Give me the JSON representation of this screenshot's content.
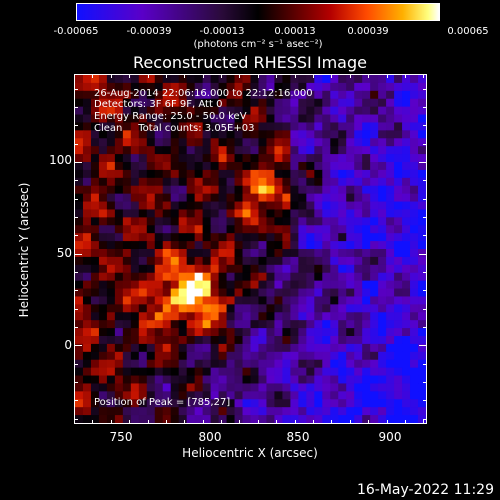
{
  "colorbar": {
    "ticks": [
      "-0.00065",
      "-0.00039",
      "-0.00013",
      "0.00013",
      "0.00039",
      "0.00065"
    ],
    "unit": "(photons cm⁻² s⁻¹ asec⁻²)"
  },
  "title": "Reconstructed RHESSI Image",
  "info": {
    "time": "26-Aug-2014 22:06:16.000 to 22:12:16.000",
    "detectors": "Detectors: 3F 6F 9F, Att 0",
    "energy": "Energy Range: 25.0 - 50.0 keV",
    "clean": "Clean     Total counts: 3.05E+03",
    "peak": "Position of Peak = [785,27]"
  },
  "axes": {
    "xlabel": "Heliocentric X (arcsec)",
    "ylabel": "Heliocentric Y (arcsec)",
    "xticks": [
      "750",
      "800",
      "850",
      "900"
    ],
    "yticks": [
      "100",
      "50",
      "0"
    ],
    "xrange": [
      725,
      917
    ],
    "yrange": [
      -43,
      148
    ]
  },
  "timestamp": "16-May-2022 11:29",
  "colors": {
    "background": "#000000",
    "text": "#ffffff"
  }
}
